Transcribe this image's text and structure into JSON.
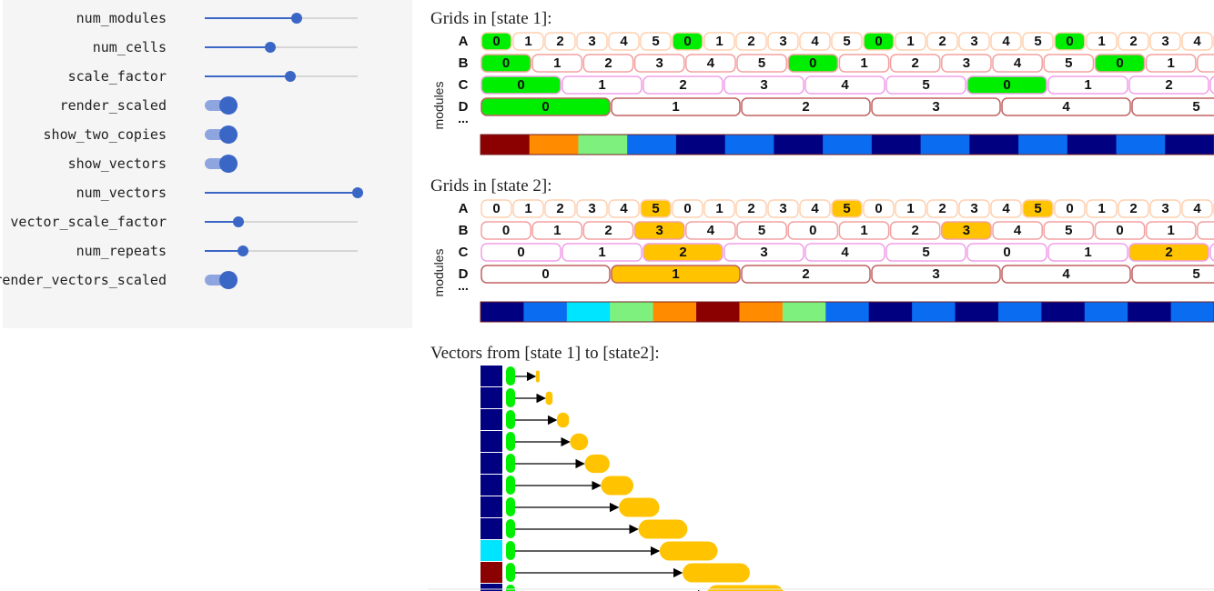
{
  "controls": [
    {
      "label": "num_modules",
      "type": "slider",
      "value_fraction": 0.6
    },
    {
      "label": "num_cells",
      "type": "slider",
      "value_fraction": 0.43
    },
    {
      "label": "scale_factor",
      "type": "slider",
      "value_fraction": 0.56
    },
    {
      "label": "render_scaled",
      "type": "toggle",
      "on": true
    },
    {
      "label": "show_two_copies",
      "type": "toggle",
      "on": true
    },
    {
      "label": "show_vectors",
      "type": "toggle",
      "on": true
    },
    {
      "label": "num_vectors",
      "type": "slider",
      "value_fraction": 1.0
    },
    {
      "label": "vector_scale_factor",
      "type": "slider",
      "value_fraction": 0.22
    },
    {
      "label": "num_repeats",
      "type": "slider",
      "value_fraction": 0.25
    },
    {
      "label": "render_vectors_scaled",
      "type": "toggle",
      "on": true
    }
  ],
  "colors": {
    "active_state1": "#00ee00",
    "active_state2": "#ffc300",
    "accent": "#3a66c6",
    "cell_border_row_a": "#ffd0b0",
    "cell_border_row_b": "#f3a0a0",
    "cell_border_row_c": "#f0a0e8",
    "cell_border_row_d": "#c06060"
  },
  "modules_axis_label": "modules",
  "ellipsis": "...",
  "rows": [
    {
      "name": "A",
      "n": 6
    },
    {
      "name": "B",
      "n": 6
    },
    {
      "name": "C",
      "n": 6
    },
    {
      "name": "D",
      "n": 6
    }
  ],
  "state1": {
    "title": "Grids in [state 1]:",
    "active": [
      0,
      0,
      0,
      0
    ],
    "strip": [
      "#8b0000",
      "#ff8c00",
      "#7ef07e",
      "#0a6cf0",
      "#000080",
      "#0a6cf0",
      "#000080",
      "#0a6cf0",
      "#000080",
      "#0a6cf0",
      "#000080",
      "#0a6cf0",
      "#000080",
      "#0a6cf0",
      "#000080"
    ]
  },
  "state2": {
    "title": "Grids in [state 2]:",
    "active": [
      5,
      3,
      2,
      1
    ],
    "strip": [
      "#000080",
      "#0a6cf0",
      "#00e5ff",
      "#7ef07e",
      "#ff8c00",
      "#8b0000",
      "#ff8c00",
      "#7ef07e",
      "#0a6cf0",
      "#000080",
      "#0a6cf0",
      "#000080",
      "#0a6cf0",
      "#000080",
      "#0a6cf0",
      "#000080",
      "#0a6cf0"
    ]
  },
  "vectors": {
    "title": "Vectors from [state 1] to [state2]:",
    "bars": [
      "#000080",
      "#000080",
      "#000080",
      "#000080",
      "#000080",
      "#000080",
      "#000080",
      "#000080",
      "#00e5ff",
      "#8b0000",
      "#000080"
    ],
    "lengths": [
      1,
      2,
      3,
      4,
      5,
      6,
      7,
      8,
      9,
      10,
      11
    ]
  }
}
